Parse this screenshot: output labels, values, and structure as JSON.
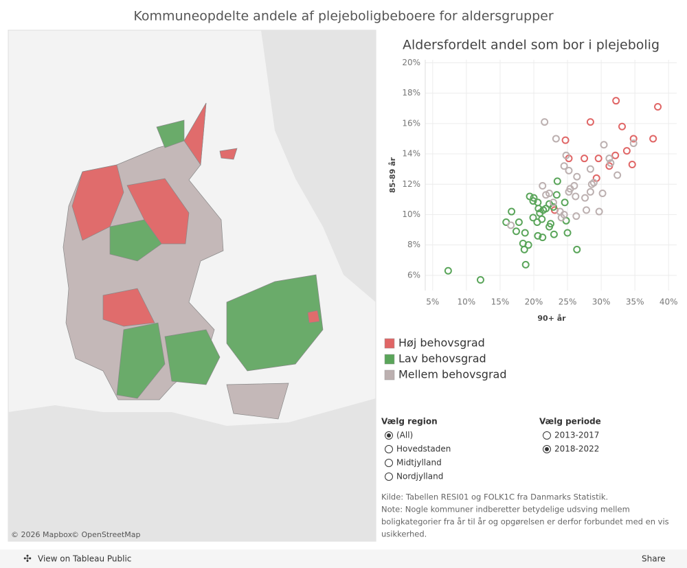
{
  "header": {
    "title": "Kommuneopdelte andele af plejeboligbeboere for aldersgrupper"
  },
  "map": {
    "credits": [
      "© 2026 Mapbox",
      "© OpenStreetMap"
    ]
  },
  "chart_data": {
    "type": "scatter",
    "title": "Aldersfordelt andel som bor i plejebolig",
    "x_label": "90+ år",
    "y_label": "85-89 år",
    "xlim": [
      3.9,
      41.2
    ],
    "ylim": [
      5.0,
      20.2
    ],
    "grid": true,
    "xticks": [
      {
        "value": 5,
        "label": "5%"
      },
      {
        "value": 10,
        "label": "10%"
      },
      {
        "value": 15,
        "label": "15%"
      },
      {
        "value": 20,
        "label": "20%"
      },
      {
        "value": 25,
        "label": "25%"
      },
      {
        "value": 30,
        "label": "30%"
      },
      {
        "value": 35,
        "label": "35%"
      },
      {
        "value": 40,
        "label": "40%"
      }
    ],
    "yticks": [
      {
        "value": 6,
        "label": "6%"
      },
      {
        "value": 8,
        "label": "8%"
      },
      {
        "value": 10,
        "label": "10%"
      },
      {
        "value": 12,
        "label": "12%"
      },
      {
        "value": 14,
        "label": "14%"
      },
      {
        "value": 16,
        "label": "16%"
      },
      {
        "value": 18,
        "label": "18%"
      },
      {
        "value": 20,
        "label": "20%"
      }
    ],
    "series": [
      {
        "name": "Høj behovsgrad",
        "color": "#e06666",
        "x": [
          38.4,
          32.2,
          28.4,
          24.7,
          33.1,
          37.7,
          34.8,
          33.8,
          32.1,
          29.6,
          27.5,
          25.2,
          31.2,
          34.6,
          29.3,
          23.1
        ],
        "values": [
          17.1,
          17.5,
          16.1,
          14.9,
          15.8,
          15.0,
          15.0,
          14.2,
          13.9,
          13.7,
          13.7,
          13.7,
          13.2,
          13.3,
          12.4,
          10.3
        ]
      },
      {
        "name": "Lav behovsgrad",
        "color": "#5aa55a",
        "x": [
          7.3,
          12.1,
          18.8,
          15.9,
          16.7,
          19.4,
          20.0,
          20.6,
          23.5,
          23.4,
          17.8,
          17.4,
          18.7,
          19.2,
          18.4,
          18.6,
          19.9,
          20.5,
          20.9,
          21.3,
          20.6,
          22.3,
          22.5,
          23.0,
          25.0,
          24.8,
          24.6,
          26.4,
          21.4,
          21.8,
          22.3,
          22.9,
          20.7,
          19.9,
          21.2
        ],
        "values": [
          6.3,
          5.7,
          6.7,
          9.5,
          10.2,
          11.2,
          11.1,
          10.8,
          12.2,
          11.3,
          9.5,
          8.9,
          8.8,
          8.0,
          8.1,
          7.7,
          9.8,
          9.5,
          10.1,
          8.5,
          8.6,
          9.2,
          9.4,
          8.7,
          8.8,
          9.6,
          10.8,
          7.7,
          10.3,
          10.4,
          10.7,
          10.5,
          10.4,
          10.9,
          9.7
        ]
      },
      {
        "name": "Mellem behovsgrad",
        "color": "#bcb0b0",
        "x": [
          21.6,
          23.3,
          30.4,
          34.8,
          31.2,
          31.4,
          32.4,
          24.8,
          24.5,
          25.2,
          28.4,
          26.4,
          26.0,
          25.4,
          28.6,
          28.9,
          30.2,
          28.4,
          27.6,
          26.2,
          21.3,
          21.8,
          22.3,
          22.9,
          23.9,
          24.1,
          24.5,
          26.3,
          27.8,
          29.7,
          16.6,
          25.2
        ],
        "values": [
          16.1,
          15.0,
          14.6,
          14.7,
          13.7,
          13.4,
          12.6,
          13.9,
          13.2,
          12.9,
          13.0,
          12.5,
          11.9,
          11.7,
          12.0,
          12.1,
          11.4,
          11.5,
          11.1,
          11.2,
          11.9,
          11.3,
          11.4,
          10.8,
          10.2,
          9.8,
          10.0,
          9.9,
          10.3,
          10.2,
          9.3,
          11.5
        ]
      }
    ]
  },
  "filters": [
    {
      "title": "Vælg region",
      "options": [
        {
          "label": "(All)",
          "selected": true
        },
        {
          "label": "Hovedstaden",
          "selected": false
        },
        {
          "label": "Midtjylland",
          "selected": false
        },
        {
          "label": "Nordjylland",
          "selected": false
        }
      ]
    },
    {
      "title": "Vælg periode",
      "options": [
        {
          "label": "2013-2017",
          "selected": false
        },
        {
          "label": "2018-2022",
          "selected": true
        }
      ]
    }
  ],
  "notes": [
    "Kilde: Tabellen RESI01 og FOLK1C fra Danmarks Statistik.",
    "Note: Nogle kommuner indberetter betydelige udsving mellem",
    "boligkategorier fra år til år og opgørelsen er derfor forbundet med en vis",
    "usikkerhed."
  ],
  "toolbar": {
    "view": "View on Tableau Public",
    "share": "Share"
  }
}
